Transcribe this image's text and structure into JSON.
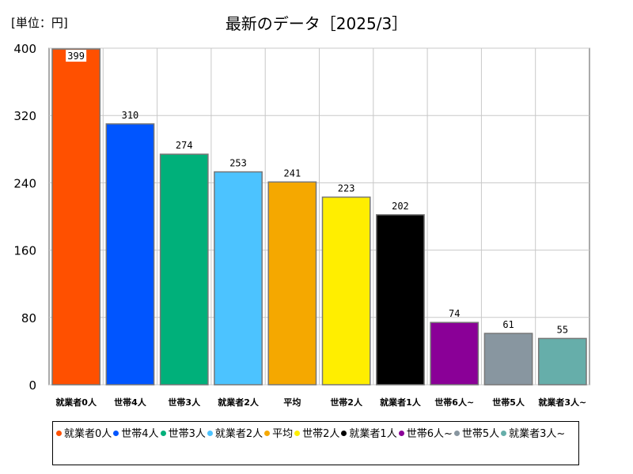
{
  "unit_label": "[単位：円]",
  "chart_data": {
    "type": "bar",
    "title": "最新のデータ［2025/3］",
    "categories": [
      "就業者0人",
      "世帯4人",
      "世帯3人",
      "就業者2人",
      "平均",
      "世帯2人",
      "就業者1人",
      "世帯6人~",
      "世帯5人",
      "就業者3人~"
    ],
    "values": [
      399,
      310,
      274,
      253,
      241,
      223,
      202,
      74,
      61,
      55
    ],
    "colors": [
      "#ff5000",
      "#0055ff",
      "#00b07a",
      "#4cc3ff",
      "#f5a800",
      "#ffee00",
      "#000000",
      "#8a0097",
      "#8896a0",
      "#66aeaa"
    ],
    "ylim": [
      0,
      400
    ],
    "yticks": [
      0,
      80,
      160,
      240,
      320,
      400
    ],
    "grid": true,
    "legend_position": "bottom"
  }
}
